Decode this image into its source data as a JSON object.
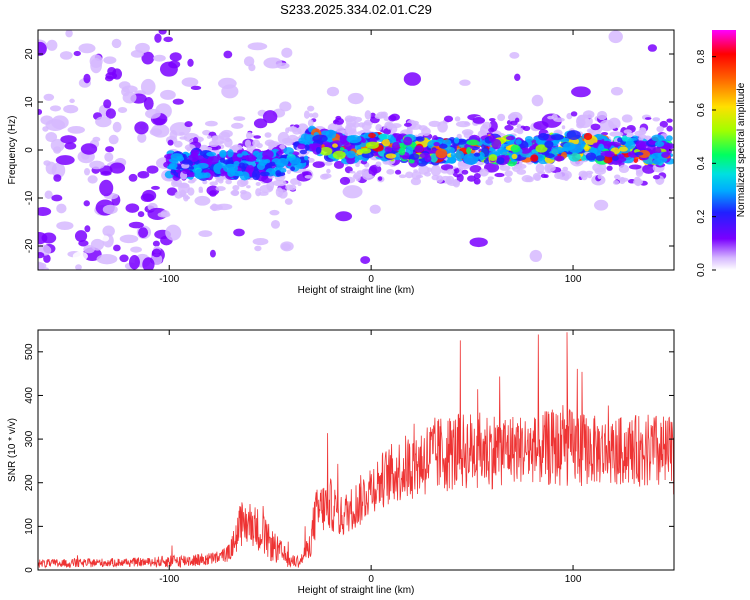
{
  "figure": {
    "title": "S233.2025.334.02.01.C29"
  },
  "chart_data": [
    {
      "type": "heatmap",
      "xlabel": "Height of straight line (km)",
      "ylabel": "Frequency (Hz)",
      "xlim": [
        -165,
        150
      ],
      "ylim": [
        -25,
        25
      ],
      "x_ticks": [
        -100,
        0,
        100
      ],
      "y_ticks": [
        -20,
        -10,
        0,
        10,
        20
      ],
      "grid": false,
      "description_of_values": "normalized spectral amplitude on a height x frequency plane",
      "ridge": {
        "x": [
          -100,
          -80,
          -60,
          -45,
          -35,
          -30,
          -20,
          -10,
          0,
          20,
          40,
          60,
          80,
          100,
          120,
          140,
          148
        ],
        "frequency_hz": [
          -3,
          -3,
          -3,
          -3,
          -1,
          2,
          1,
          0,
          1,
          0,
          0,
          0,
          0,
          1,
          0,
          0,
          0
        ]
      },
      "colorbar": {
        "label": "Normalized spectral amplitude",
        "ticks": [
          0.0,
          0.2,
          0.4,
          0.6,
          0.8
        ],
        "tick_labels": [
          "0.0",
          "0.2",
          "0.4",
          "0.6",
          "0.8"
        ],
        "range": [
          0,
          0.9
        ],
        "colormap": [
          "#ffffff",
          "#d6b8ff",
          "#7a00ff",
          "#2020ff",
          "#00aaff",
          "#00e0e0",
          "#00ff60",
          "#a0ff00",
          "#ffe000",
          "#ff6000",
          "#ff0000",
          "#ff00ff"
        ]
      }
    },
    {
      "type": "line",
      "xlabel": "Height of straight line (km)",
      "ylabel": "SNR (10 * v/v)",
      "xlim": [
        -165,
        150
      ],
      "ylim": [
        0,
        550
      ],
      "x_ticks": [
        -100,
        0,
        100
      ],
      "y_ticks": [
        0,
        100,
        200,
        300,
        400,
        500
      ],
      "grid": false,
      "series": [
        {
          "color": "#ee3333",
          "x": [
            -165,
            -150,
            -130,
            -110,
            -100,
            -90,
            -80,
            -75,
            -70,
            -65,
            -60,
            -55,
            -50,
            -45,
            -40,
            -35,
            -30,
            -28,
            -25,
            -20,
            -15,
            -10,
            -5,
            0,
            10,
            20,
            30,
            40,
            50,
            60,
            70,
            80,
            90,
            100,
            110,
            120,
            130,
            140,
            150
          ],
          "y": [
            15,
            15,
            17,
            18,
            20,
            22,
            25,
            30,
            40,
            100,
            110,
            90,
            60,
            40,
            20,
            20,
            60,
            120,
            140,
            150,
            120,
            140,
            160,
            190,
            220,
            240,
            260,
            270,
            275,
            275,
            280,
            275,
            280,
            280,
            275,
            270,
            275,
            270,
            260
          ],
          "spread": [
            10,
            10,
            10,
            10,
            15,
            15,
            15,
            15,
            20,
            50,
            50,
            50,
            40,
            30,
            15,
            15,
            30,
            60,
            60,
            60,
            50,
            50,
            60,
            60,
            70,
            80,
            90,
            90,
            90,
            90,
            80,
            80,
            90,
            90,
            80,
            80,
            80,
            90,
            90
          ]
        }
      ],
      "annotations": [
        {
          "x": 97,
          "y": 545,
          "text": ""
        }
      ]
    }
  ]
}
